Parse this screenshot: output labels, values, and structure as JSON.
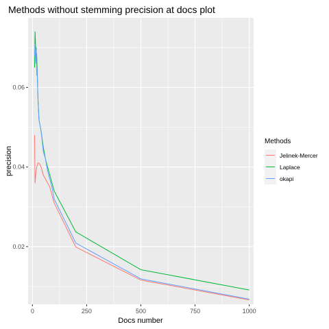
{
  "chart_data": {
    "type": "line",
    "title": "Methods without stemming precision at docs plot",
    "xlabel": "Docs number",
    "ylabel": "precision",
    "xlim": [
      -20,
      1020
    ],
    "ylim": [
      0.0055,
      0.0775
    ],
    "x_ticks": [
      {
        "value": 0,
        "label": "0"
      },
      {
        "value": 250,
        "label": "250"
      },
      {
        "value": 500,
        "label": "500"
      },
      {
        "value": 750,
        "label": "750"
      },
      {
        "value": 1000,
        "label": "1000"
      }
    ],
    "y_ticks": [
      {
        "value": 0.02,
        "label": "0.02"
      },
      {
        "value": 0.04,
        "label": "0.04"
      },
      {
        "value": 0.06,
        "label": "0.06"
      }
    ],
    "grid": true,
    "legend": {
      "title": "Methods",
      "position": "right"
    },
    "colors": {
      "panel": "#ebebeb",
      "grid": "#ffffff"
    },
    "series": [
      {
        "name": "Jelinek-Mercer",
        "color": "#f8766d",
        "x": [
          10,
          12,
          15,
          20,
          25,
          30,
          40,
          50,
          60,
          70,
          80,
          90,
          100,
          200,
          500,
          1000
        ],
        "y": [
          0.048,
          0.036,
          0.038,
          0.04,
          0.041,
          0.041,
          0.04,
          0.038,
          0.037,
          0.036,
          0.035,
          0.033,
          0.031,
          0.0199,
          0.0116,
          0.0066
        ]
      },
      {
        "name": "Laplace",
        "color": "#00ba38",
        "x": [
          10,
          12,
          15,
          20,
          25,
          30,
          40,
          50,
          60,
          70,
          80,
          90,
          100,
          200,
          500,
          1000
        ],
        "y": [
          0.065,
          0.074,
          0.07,
          0.068,
          0.058,
          0.052,
          0.049,
          0.045,
          0.042,
          0.04,
          0.038,
          0.036,
          0.034,
          0.0237,
          0.0142,
          0.0091
        ]
      },
      {
        "name": "okapi",
        "color": "#619cff",
        "x": [
          10,
          12,
          15,
          18,
          20,
          22,
          25,
          30,
          40,
          50,
          60,
          70,
          80,
          90,
          100,
          200,
          500,
          1000
        ],
        "y": [
          0.068,
          0.071,
          0.066,
          0.07,
          0.063,
          0.065,
          0.058,
          0.052,
          0.049,
          0.044,
          0.042,
          0.039,
          0.037,
          0.035,
          0.032,
          0.0209,
          0.0119,
          0.0068
        ]
      }
    ]
  }
}
